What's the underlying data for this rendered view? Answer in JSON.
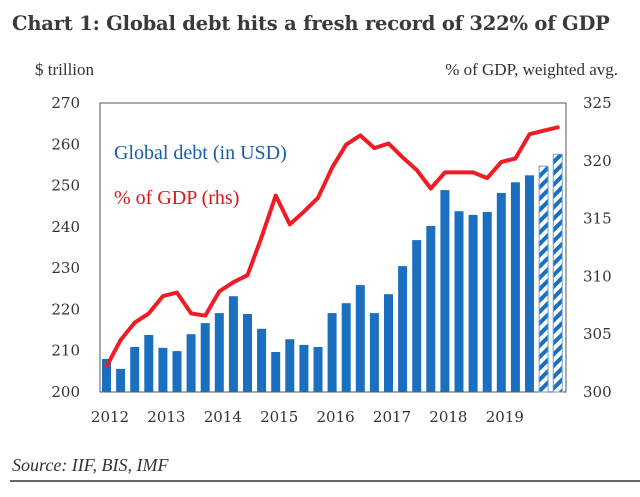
{
  "title": "Chart 1: Global debt hits a fresh record of 322% of GDP",
  "source": "Source: IIF, BIS, IMF",
  "colors": {
    "bar": "#1a6fbf",
    "line": "#ee1c24",
    "bar_legend_text": "#1a5fa8",
    "line_legend_text": "#e0121b"
  },
  "chart_data": {
    "type": "bar",
    "title": "Chart 1: Global debt hits a fresh record of 322% of GDP",
    "xlabel": "",
    "ylabel": "$ trillion",
    "y2label": "% of GDP, weighted avg.",
    "ylim": [
      200,
      270
    ],
    "y2lim": [
      300,
      325
    ],
    "yticks": [
      "200",
      "210",
      "220",
      "230",
      "240",
      "250",
      "260",
      "270"
    ],
    "y2ticks": [
      "300",
      "305",
      "310",
      "315",
      "320",
      "325"
    ],
    "xtick_labels": [
      "2012",
      "2013",
      "2014",
      "2015",
      "2016",
      "2017",
      "2018",
      "2019"
    ],
    "grid": false,
    "legend_placement": "top-left",
    "categories": [
      "2012Q1",
      "2012Q2",
      "2012Q3",
      "2012Q4",
      "2013Q1",
      "2013Q2",
      "2013Q3",
      "2013Q4",
      "2014Q1",
      "2014Q2",
      "2014Q3",
      "2014Q4",
      "2015Q1",
      "2015Q2",
      "2015Q3",
      "2015Q4",
      "2016Q1",
      "2016Q2",
      "2016Q3",
      "2016Q4",
      "2017Q1",
      "2017Q2",
      "2017Q3",
      "2017Q4",
      "2018Q1",
      "2018Q2",
      "2018Q3",
      "2018Q4",
      "2019Q1",
      "2019Q2",
      "2019Q3",
      "2019Q4",
      "2020Q1"
    ],
    "series": [
      {
        "name": "Global debt (in USD)",
        "type": "bar",
        "axis": "left",
        "values": [
          208.0,
          205.6,
          210.9,
          213.8,
          210.7,
          209.9,
          214.0,
          216.7,
          219.1,
          223.2,
          218.9,
          215.3,
          209.7,
          212.8,
          211.4,
          210.9,
          219.1,
          221.5,
          225.9,
          219.1,
          223.7,
          230.5,
          236.8,
          240.2,
          248.9,
          243.8,
          242.9,
          243.6,
          248.2,
          250.8,
          252.5,
          254.7,
          257.6
        ],
        "estimate_flags": [
          false,
          false,
          false,
          false,
          false,
          false,
          false,
          false,
          false,
          false,
          false,
          false,
          false,
          false,
          false,
          false,
          false,
          false,
          false,
          false,
          false,
          false,
          false,
          false,
          false,
          false,
          false,
          false,
          false,
          false,
          false,
          true,
          true
        ]
      },
      {
        "name": "% of GDP (rhs)",
        "type": "line",
        "axis": "right",
        "values": [
          302.2,
          304.5,
          306.0,
          306.8,
          308.3,
          308.6,
          306.8,
          306.6,
          308.7,
          309.5,
          310.1,
          313.4,
          317.0,
          314.5,
          315.6,
          316.8,
          319.4,
          321.4,
          322.2,
          321.1,
          321.5,
          320.3,
          319.2,
          317.6,
          319.0,
          319.0,
          319.0,
          318.5,
          319.9,
          320.2,
          322.3,
          322.6,
          322.9
        ]
      }
    ]
  }
}
